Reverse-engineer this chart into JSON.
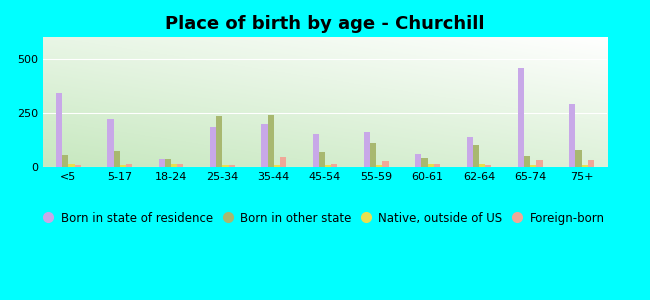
{
  "title": "Place of birth by age - Churchill",
  "background_color": "#00FFFF",
  "categories": [
    "<5",
    "5-17",
    "18-24",
    "25-34",
    "35-44",
    "45-54",
    "55-59",
    "60-61",
    "62-64",
    "65-74",
    "75+"
  ],
  "series": {
    "Born in state of residence": [
      340,
      220,
      35,
      185,
      200,
      150,
      160,
      60,
      140,
      460,
      290
    ],
    "Born in other state": [
      55,
      75,
      35,
      235,
      240,
      70,
      110,
      40,
      100,
      50,
      80
    ],
    "Native, outside of US": [
      12,
      8,
      15,
      8,
      8,
      8,
      8,
      15,
      12,
      8,
      8
    ],
    "Foreign-born": [
      8,
      12,
      12,
      8,
      45,
      15,
      25,
      15,
      8,
      30,
      30
    ]
  },
  "colors": {
    "Born in state of residence": "#c8a8e8",
    "Born in other state": "#a8b870",
    "Native, outside of US": "#e8e050",
    "Foreign-born": "#f0a898"
  },
  "ylim": [
    0,
    600
  ],
  "yticks": [
    0,
    250,
    500
  ],
  "bar_width": 0.12,
  "title_fontsize": 13,
  "legend_fontsize": 8.5,
  "tick_fontsize": 8
}
